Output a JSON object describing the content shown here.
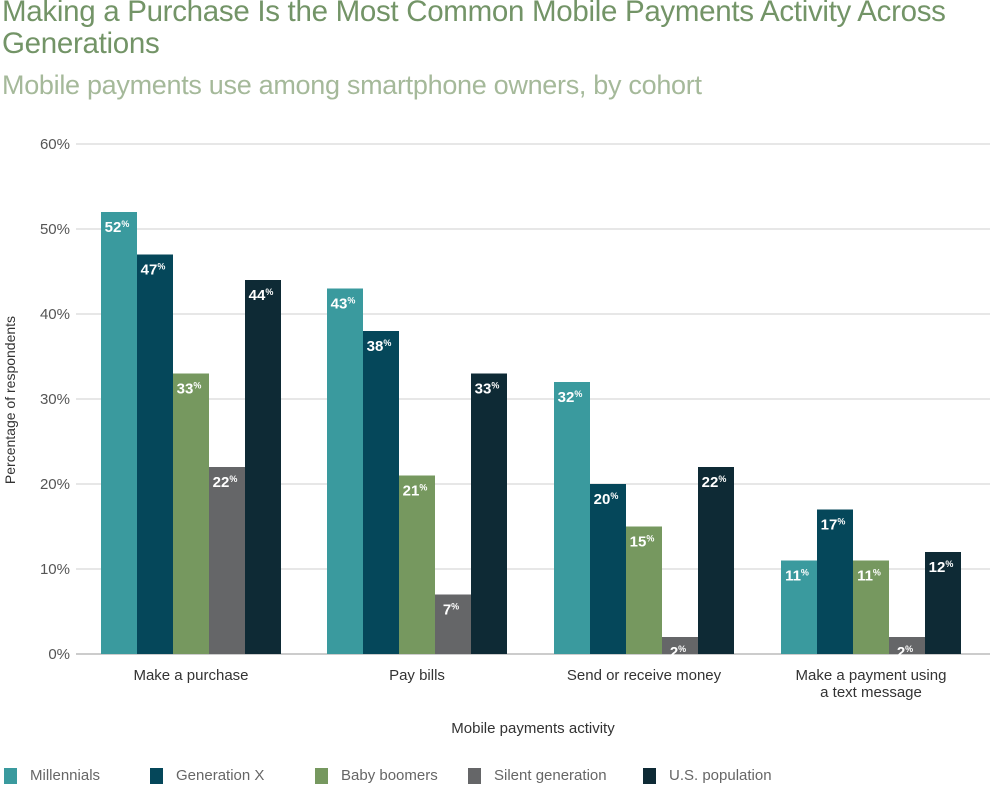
{
  "title": "Making a Purchase Is the Most Common Mobile Payments Activity Across Generations",
  "subtitle": "Mobile payments use among smartphone owners, by cohort",
  "chart_data": {
    "type": "bar",
    "title": "Making a Purchase Is the Most Common Mobile Payments Activity Across Generations",
    "subtitle": "Mobile payments use among smartphone owners, by cohort",
    "xlabel": "Mobile payments activity",
    "ylabel": "Percentage of respondents",
    "ylim": [
      0,
      60
    ],
    "yticks": [
      "0%",
      "10%",
      "20%",
      "30%",
      "40%",
      "50%",
      "60%"
    ],
    "grid": true,
    "legend": "bottom",
    "categories": [
      "Make a purchase",
      "Pay bills",
      "Send or receive money",
      "Make a payment using a text message"
    ],
    "series": [
      {
        "name": "Millennials",
        "color": "#3a9a9e",
        "values": [
          52,
          43,
          32,
          11
        ]
      },
      {
        "name": "Generation X",
        "color": "#05475a",
        "values": [
          47,
          38,
          20,
          17
        ]
      },
      {
        "name": "Baby boomers",
        "color": "#76985f",
        "values": [
          33,
          21,
          15,
          11
        ]
      },
      {
        "name": "Silent generation",
        "color": "#656668",
        "values": [
          22,
          7,
          2,
          2
        ]
      },
      {
        "name": "U.S. population",
        "color": "#0e2a35",
        "values": [
          44,
          33,
          22,
          12
        ]
      }
    ]
  }
}
